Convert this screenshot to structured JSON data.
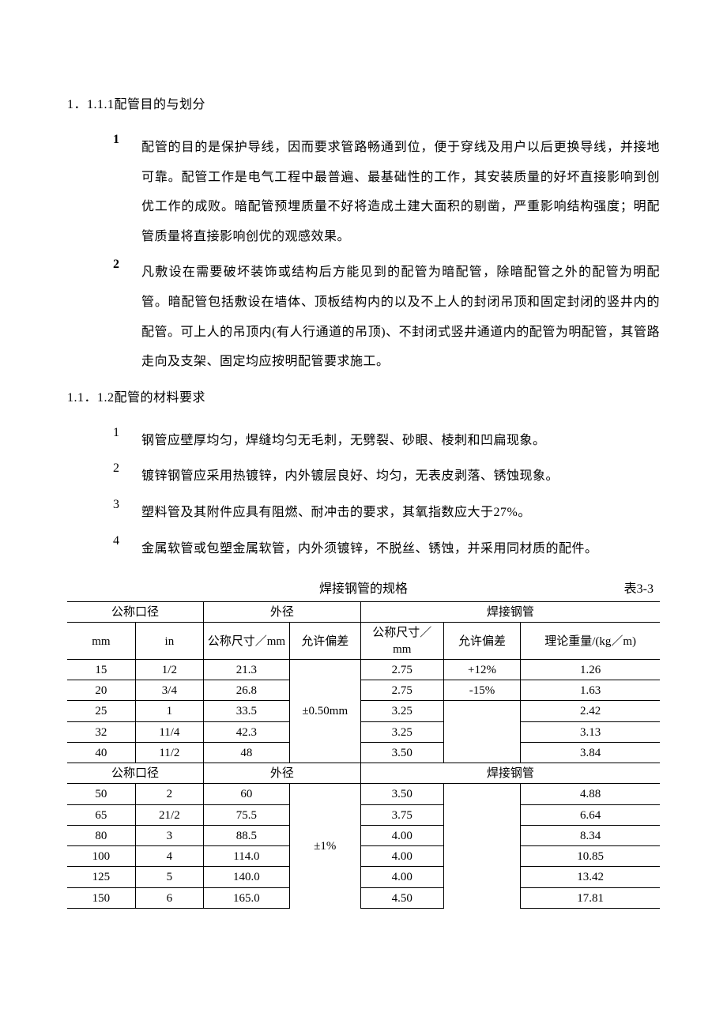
{
  "doc": {
    "text_color": "#000000",
    "bg_color": "#ffffff",
    "border_color": "#000000",
    "font_family": "SimSun",
    "heading_fontsize": 16,
    "body_fontsize": 16,
    "table_fontsize": 15,
    "line_height": 2.35,
    "sections": [
      {
        "number": "1．1.1.1",
        "title": "配管目的与划分",
        "num_bold": true,
        "items": [
          {
            "num": "1",
            "text": "配管的目的是保护导线，因而要求管路畅通到位，便于穿线及用户以后更换导线，并接地可靠。配管工作是电气工程中最普遍、最基础性的工作，其安装质量的好坏直接影响到创优工作的成败。暗配管预埋质量不好将造成土建大面积的剔凿，严重影响结构强度；明配管质量将直接影响创优的观感效果。"
          },
          {
            "num": "2",
            "text": "凡敷设在需要破坏装饰或结构后方能见到的配管为暗配管，除暗配管之外的配管为明配管。暗配管包括敷设在墙体、顶板结构内的以及不上人的封闭吊顶和固定封闭的竖井内的配管。可上人的吊顶内(有人行通道的吊顶)、不封闭式竖井通道内的配管为明配管，其管路走向及支架、固定均应按明配管要求施工。"
          }
        ]
      },
      {
        "number": "1.1．1.2",
        "title": "配管的材料要求",
        "num_bold": false,
        "items": [
          {
            "num": "1",
            "text": "钢管应壁厚均匀，焊缝均匀无毛刺，无劈裂、砂眼、棱刺和凹扁现象。"
          },
          {
            "num": "2",
            "text": "镀锌钢管应采用热镀锌，内外镀层良好、均匀，无表皮剥落、锈蚀现象。"
          },
          {
            "num": "3",
            "text": "塑料管及其附件应具有阻燃、耐冲击的要求，其氧指数应大于27%。"
          },
          {
            "num": "4",
            "text": "金属软管或包塑金属软管，内外须镀锌，不脱丝、锈蚀，并采用同材质的配件。"
          }
        ]
      }
    ],
    "table": {
      "type": "table",
      "title": "焊接钢管的规格",
      "caption_right": "表3-3",
      "header_group1": {
        "label": "公称口径",
        "sub": [
          "mm",
          "in"
        ]
      },
      "header_group2": {
        "label": "外径",
        "sub": [
          "公称尺寸／mm",
          "允许偏差"
        ]
      },
      "header_group3": {
        "label": "焊接钢管",
        "sub": [
          "公称尺寸／mm",
          "允许偏差",
          "理论重量/(kg／m)"
        ]
      },
      "col_widths_pct": [
        11.5,
        11.5,
        14.5,
        12,
        14,
        13,
        23.5
      ],
      "block1": {
        "tol_outer": "±0.50mm",
        "tol_pos": "+12%",
        "tol_neg": "-15%",
        "rows": [
          {
            "mm": "15",
            "in": "1/2",
            "od": "21.3",
            "wall": "2.75",
            "wt": "1.26"
          },
          {
            "mm": "20",
            "in": "3/4",
            "od": "26.8",
            "wall": "2.75",
            "wt": "1.63"
          },
          {
            "mm": "25",
            "in": "1",
            "od": "33.5",
            "wall": "3.25",
            "wt": "2.42"
          },
          {
            "mm": "32",
            "in": "11/4",
            "od": "42.3",
            "wall": "3.25",
            "wt": "3.13"
          },
          {
            "mm": "40",
            "in": "11/2",
            "od": "48",
            "wall": "3.50",
            "wt": "3.84"
          }
        ]
      },
      "block2": {
        "tol_outer": "±1%",
        "tol_pos": "",
        "rows": [
          {
            "mm": "50",
            "in": "2",
            "od": "60",
            "wall": "3.50",
            "wt": "4.88"
          },
          {
            "mm": "65",
            "in": "21/2",
            "od": "75.5",
            "wall": "3.75",
            "wt": "6.64"
          },
          {
            "mm": "80",
            "in": "3",
            "od": "88.5",
            "wall": "4.00",
            "wt": "8.34"
          },
          {
            "mm": "100",
            "in": "4",
            "od": "114.0",
            "wall": "4.00",
            "wt": "10.85"
          },
          {
            "mm": "125",
            "in": "5",
            "od": "140.0",
            "wall": "4.00",
            "wt": "13.42"
          },
          {
            "mm": "150",
            "in": "6",
            "od": "165.0",
            "wall": "4.50",
            "wt": "17.81"
          }
        ]
      }
    }
  }
}
